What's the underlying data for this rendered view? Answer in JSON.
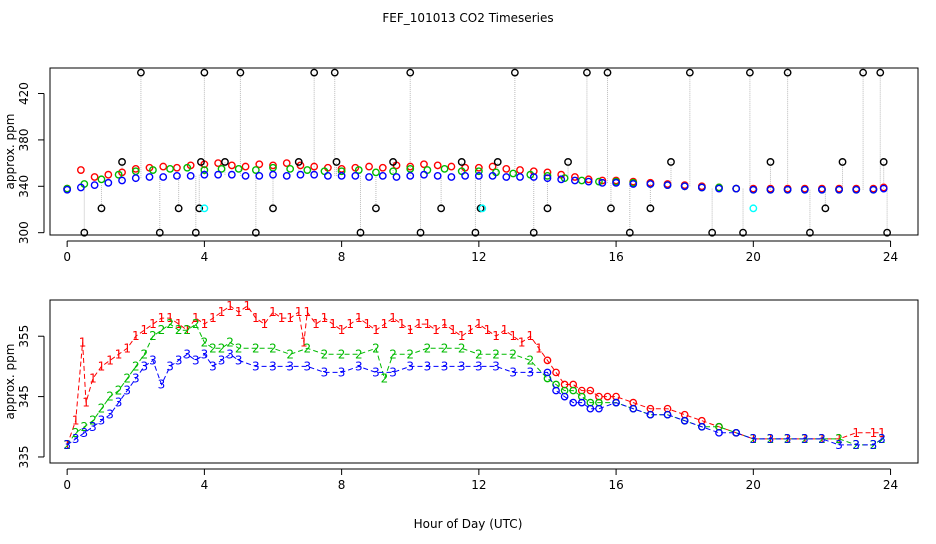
{
  "figure": {
    "title": "FEF_101013  CO2 Timeseries",
    "xlabel": "Hour of Day (UTC)"
  },
  "colors": {
    "series_1": "#ff0000",
    "series_2": "#00bb00",
    "series_3": "#0000ff",
    "spike": "#000000",
    "flagged": "#00ffff",
    "connector": "#bbbbbb"
  },
  "chart_data": [
    {
      "type": "scatter",
      "panel": "top",
      "title": "",
      "xlabel": "",
      "ylabel": "approx. ppm",
      "xlim": [
        -0.5,
        24.8
      ],
      "ylim": [
        298,
        442
      ],
      "x_ticks": [
        0,
        4,
        8,
        12,
        16,
        20,
        24
      ],
      "y_ticks": [
        300,
        340,
        380,
        420
      ],
      "series": [
        {
          "color_key": "series_1",
          "marker": "circle",
          "x": [
            0.0,
            0.4,
            0.8,
            1.2,
            1.6,
            2.0,
            2.4,
            2.8,
            3.2,
            3.6,
            4.0,
            4.4,
            4.8,
            5.2,
            5.6,
            6.0,
            6.4,
            6.8,
            7.2,
            7.6,
            8.0,
            8.4,
            8.8,
            9.2,
            9.6,
            10.0,
            10.4,
            10.8,
            11.2,
            11.6,
            12.0,
            12.4,
            12.8,
            13.2,
            13.6,
            14.0,
            14.4,
            14.8,
            15.2,
            15.6,
            16.0,
            16.5,
            17.0,
            17.5,
            18.0,
            18.5,
            19.0,
            19.5,
            20.0,
            20.5,
            21.0,
            21.5,
            22.0,
            22.5,
            23.0,
            23.5,
            23.8
          ],
          "y": [
            338,
            354,
            348,
            350,
            352,
            355,
            356,
            357,
            356,
            358,
            359,
            360,
            358,
            357,
            359,
            358,
            360,
            358,
            357,
            356,
            355,
            356,
            357,
            356,
            358,
            357,
            359,
            358,
            357,
            356,
            356,
            357,
            355,
            354,
            353,
            352,
            350,
            348,
            346,
            345,
            345,
            344,
            343,
            342,
            341,
            340,
            339,
            338,
            338,
            338,
            338,
            338,
            338,
            338,
            338,
            338,
            339
          ]
        },
        {
          "color_key": "series_2",
          "marker": "circle",
          "x": [
            0.0,
            0.5,
            1.0,
            1.5,
            2.0,
            2.5,
            3.0,
            3.5,
            4.0,
            4.5,
            5.0,
            5.5,
            6.0,
            6.5,
            7.0,
            7.5,
            8.0,
            8.5,
            9.0,
            9.5,
            10.0,
            10.5,
            11.0,
            11.5,
            12.0,
            12.5,
            13.0,
            13.5,
            14.0,
            14.5,
            15.0,
            15.5,
            16.0,
            16.5,
            17.0,
            17.5,
            18.0,
            18.5,
            19.0,
            19.5,
            20.0,
            20.5,
            21.0,
            21.5,
            22.0,
            22.5,
            23.0,
            23.5
          ],
          "y": [
            338,
            342,
            346,
            350,
            353,
            354,
            355,
            356,
            354,
            355,
            355,
            354,
            356,
            355,
            354,
            353,
            353,
            354,
            352,
            353,
            355,
            354,
            355,
            353,
            353,
            352,
            351,
            350,
            349,
            347,
            345,
            344,
            344,
            343,
            342,
            341,
            340,
            339,
            339,
            338,
            337,
            337,
            337,
            337,
            337,
            337,
            337,
            337
          ]
        },
        {
          "color_key": "series_3",
          "marker": "circle",
          "x": [
            0.0,
            0.4,
            0.8,
            1.2,
            1.6,
            2.0,
            2.4,
            2.8,
            3.2,
            3.6,
            4.0,
            4.4,
            4.8,
            5.2,
            5.6,
            6.0,
            6.4,
            6.8,
            7.2,
            7.6,
            8.0,
            8.4,
            8.8,
            9.2,
            9.6,
            10.0,
            10.4,
            10.8,
            11.2,
            11.6,
            12.0,
            12.4,
            12.8,
            13.2,
            13.6,
            14.0,
            14.4,
            14.8,
            15.2,
            15.6,
            16.0,
            16.5,
            17.0,
            17.5,
            18.0,
            18.5,
            19.0,
            19.5,
            20.0,
            20.5,
            21.0,
            21.5,
            22.0,
            22.5,
            23.0,
            23.5,
            23.8
          ],
          "y": [
            337,
            339,
            341,
            343,
            345,
            347,
            348,
            348,
            349,
            349,
            350,
            350,
            350,
            349,
            349,
            350,
            349,
            350,
            350,
            349,
            349,
            349,
            348,
            349,
            348,
            349,
            350,
            349,
            348,
            349,
            349,
            349,
            348,
            348,
            348,
            347,
            346,
            345,
            344,
            343,
            343,
            342,
            342,
            341,
            340,
            339,
            338,
            338,
            337,
            337,
            337,
            337,
            337,
            337,
            337,
            337,
            338
          ]
        },
        {
          "color_key": "spike",
          "marker": "circle",
          "x": [
            0.5,
            1.0,
            1.6,
            2.15,
            2.7,
            3.25,
            3.75,
            3.85,
            3.9,
            4.0,
            4.6,
            5.05,
            5.5,
            6.0,
            6.75,
            7.2,
            7.8,
            7.85,
            8.55,
            9.0,
            9.5,
            10.0,
            10.3,
            10.9,
            11.5,
            11.9,
            12.05,
            12.55,
            13.05,
            13.6,
            14.0,
            14.6,
            15.15,
            15.75,
            15.85,
            16.4,
            17.0,
            17.6,
            18.15,
            18.8,
            19.7,
            19.9,
            20.5,
            21.0,
            21.65,
            22.1,
            22.6,
            23.2,
            23.7,
            23.8,
            23.9
          ],
          "y": [
            300,
            321,
            361,
            438,
            300,
            321,
            300,
            321,
            361,
            438,
            361,
            438,
            300,
            321,
            361,
            438,
            438,
            361,
            300,
            321,
            361,
            438,
            300,
            321,
            361,
            300,
            321,
            361,
            438,
            300,
            321,
            361,
            438,
            438,
            321,
            300,
            321,
            361,
            438,
            300,
            300,
            438,
            361,
            438,
            300,
            321,
            361,
            438,
            438,
            361,
            300
          ]
        },
        {
          "color_key": "flagged",
          "marker": "circle",
          "x": [
            4.0,
            12.1,
            20.0
          ],
          "y": [
            321,
            321,
            321
          ]
        }
      ]
    },
    {
      "type": "line",
      "panel": "bottom",
      "title": "",
      "xlabel": "",
      "ylabel": "approx. ppm",
      "xlim": [
        -0.5,
        24.8
      ],
      "ylim": [
        334,
        361
      ],
      "x_ticks": [
        0,
        4,
        8,
        12,
        16,
        20,
        24
      ],
      "y_ticks": [
        335,
        345,
        355
      ],
      "series": [
        {
          "color_key": "series_1",
          "marker_label": "1",
          "x": [
            0.0,
            0.25,
            0.45,
            0.55,
            0.75,
            1.0,
            1.25,
            1.5,
            1.75,
            2.0,
            2.25,
            2.5,
            2.75,
            3.0,
            3.25,
            3.5,
            3.75,
            4.0,
            4.25,
            4.5,
            4.75,
            5.0,
            5.25,
            5.5,
            5.75,
            6.0,
            6.25,
            6.5,
            6.75,
            6.9,
            7.0,
            7.25,
            7.5,
            7.75,
            8.0,
            8.25,
            8.5,
            8.75,
            9.0,
            9.25,
            9.5,
            9.75,
            10.0,
            10.25,
            10.5,
            10.75,
            11.0,
            11.25,
            11.5,
            11.75,
            12.0,
            12.25,
            12.5,
            12.75,
            13.0,
            13.25,
            13.5,
            13.75,
            14.0,
            14.25,
            14.5,
            14.75,
            15.0,
            15.25,
            15.5,
            15.75,
            16.0,
            16.5,
            17.0,
            17.5,
            18.0,
            18.5,
            19.0,
            19.5,
            20.0,
            20.5,
            21.0,
            21.5,
            22.0,
            22.5,
            23.0,
            23.5,
            23.75
          ],
          "y": [
            337,
            341,
            354,
            344,
            348,
            350,
            351,
            352,
            353,
            355,
            356,
            357,
            358,
            358,
            357,
            356,
            358,
            357,
            358,
            359,
            360,
            359,
            360,
            358,
            357,
            359,
            358,
            358,
            359,
            354,
            359,
            357,
            358,
            357,
            356,
            357,
            358,
            357,
            356,
            357,
            358,
            357,
            356,
            357,
            357,
            356,
            357,
            356,
            355,
            356,
            357,
            356,
            355,
            356,
            355,
            354,
            355,
            353,
            351,
            349,
            347,
            347,
            346,
            346,
            345,
            345,
            345,
            344,
            343,
            343,
            342,
            341,
            340,
            339,
            338,
            338,
            338,
            338,
            338,
            338,
            339,
            339,
            339
          ]
        },
        {
          "color_key": "series_2",
          "marker_label": "2",
          "x": [
            0.0,
            0.25,
            0.5,
            0.75,
            1.0,
            1.25,
            1.5,
            1.75,
            2.0,
            2.25,
            2.5,
            2.75,
            3.0,
            3.25,
            3.5,
            3.75,
            4.0,
            4.25,
            4.5,
            4.75,
            5.0,
            5.5,
            6.0,
            6.5,
            7.0,
            7.5,
            8.0,
            8.5,
            9.0,
            9.25,
            9.5,
            10.0,
            10.5,
            11.0,
            11.5,
            12.0,
            12.5,
            13.0,
            13.5,
            14.0,
            14.25,
            14.5,
            14.75,
            15.0,
            15.25,
            15.5,
            16.0,
            16.5,
            17.0,
            17.5,
            18.0,
            18.5,
            19.0,
            19.5,
            20.0,
            20.5,
            21.0,
            21.5,
            22.0,
            22.5,
            23.0,
            23.5,
            23.75
          ],
          "y": [
            337,
            339,
            340,
            341,
            343,
            345,
            346,
            348,
            350,
            352,
            355,
            356,
            357,
            356,
            356,
            357,
            354,
            353,
            353,
            354,
            353,
            353,
            353,
            352,
            353,
            352,
            352,
            352,
            353,
            348,
            352,
            352,
            353,
            353,
            353,
            352,
            352,
            352,
            351,
            348,
            347,
            346,
            346,
            345,
            344,
            344,
            344,
            343,
            342,
            342,
            341,
            340,
            340,
            339,
            338,
            338,
            338,
            338,
            338,
            338,
            337,
            337,
            338
          ]
        },
        {
          "color_key": "series_3",
          "marker_label": "3",
          "x": [
            0.0,
            0.25,
            0.5,
            0.75,
            1.0,
            1.25,
            1.5,
            1.75,
            2.0,
            2.25,
            2.5,
            2.75,
            3.0,
            3.25,
            3.5,
            3.75,
            4.0,
            4.25,
            4.5,
            4.75,
            5.0,
            5.5,
            6.0,
            6.5,
            7.0,
            7.5,
            8.0,
            8.5,
            9.0,
            9.5,
            10.0,
            10.5,
            11.0,
            11.5,
            12.0,
            12.5,
            13.0,
            13.5,
            14.0,
            14.25,
            14.5,
            14.75,
            15.0,
            15.25,
            15.5,
            16.0,
            16.5,
            17.0,
            17.5,
            18.0,
            18.5,
            19.0,
            19.5,
            20.0,
            20.5,
            21.0,
            21.5,
            22.0,
            22.5,
            23.0,
            23.5,
            23.75
          ],
          "y": [
            337,
            338,
            339,
            340,
            341,
            342,
            344,
            346,
            348,
            350,
            351,
            347,
            350,
            351,
            352,
            351,
            352,
            350,
            351,
            352,
            351,
            350,
            350,
            350,
            350,
            349,
            349,
            350,
            349,
            349,
            350,
            350,
            350,
            350,
            350,
            350,
            349,
            349,
            349,
            346,
            345,
            344,
            344,
            343,
            343,
            344,
            343,
            342,
            342,
            341,
            340,
            339,
            339,
            338,
            338,
            338,
            338,
            338,
            337,
            337,
            337,
            338
          ]
        }
      ]
    }
  ]
}
